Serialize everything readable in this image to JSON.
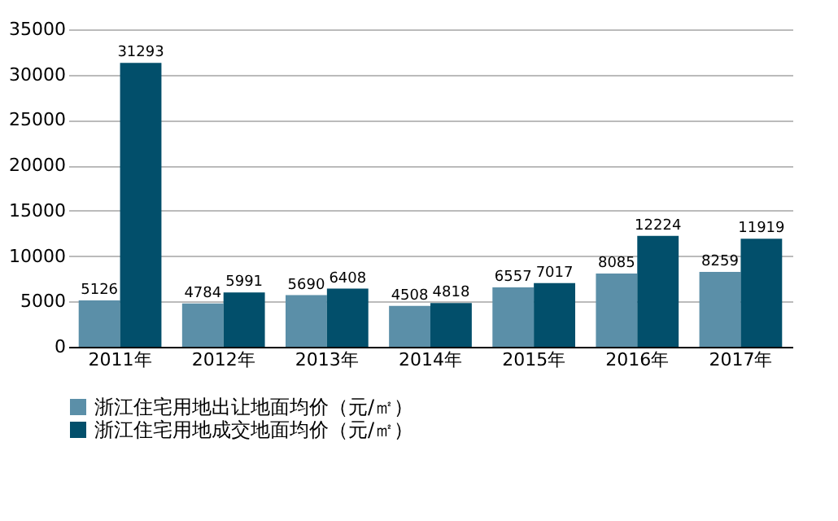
{
  "chart_data": {
    "type": "bar",
    "categories": [
      "2011年",
      "2012年",
      "2013年",
      "2014年",
      "2015年",
      "2016年",
      "2017年"
    ],
    "series": [
      {
        "name": "浙江住宅用地出让地面均价（元/㎡）",
        "color": "#5b8fa8",
        "values": [
          5126,
          4784,
          5690,
          4508,
          6557,
          8085,
          8259
        ]
      },
      {
        "name": "浙江住宅用地成交地面均价（元/㎡）",
        "color": "#024f6b",
        "values": [
          31293,
          5991,
          6408,
          4818,
          7017,
          12224,
          11919
        ]
      }
    ],
    "ylim": [
      0,
      35000
    ],
    "yticks": [
      0,
      5000,
      10000,
      15000,
      20000,
      25000,
      30000,
      35000
    ],
    "grid": "y",
    "legend": "bottom",
    "data_labels": true
  }
}
